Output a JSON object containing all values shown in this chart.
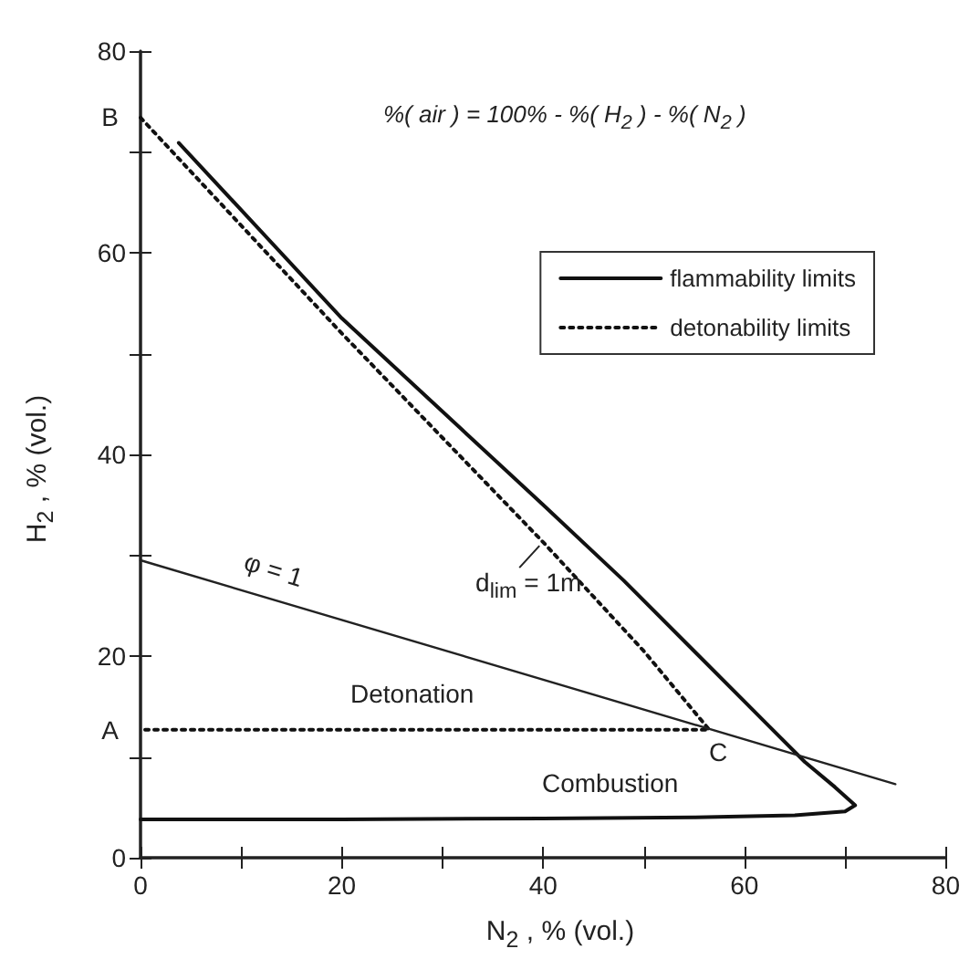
{
  "chart_data": {
    "type": "line",
    "xlabel": "N$_{2}$ , % (vol.)",
    "ylabel": "H$_{2}$ , % (vol.)",
    "xlim": [
      0,
      80
    ],
    "ylim": [
      0,
      80
    ],
    "xticks": [
      0,
      {
        "value": 10,
        "label": null
      },
      20,
      {
        "value": 30,
        "label": null
      },
      40,
      {
        "value": 50,
        "label": null
      },
      60,
      {
        "value": 70,
        "label": null
      },
      80
    ],
    "yticks": [
      0,
      {
        "value": 10,
        "label": null
      },
      20,
      {
        "value": 30,
        "label": null
      },
      40,
      {
        "value": 50,
        "label": null
      },
      60,
      {
        "value": 70,
        "label": null
      },
      80
    ],
    "grid": false,
    "legend": "top right",
    "marker": "none",
    "series": [
      {
        "name": "flammability limits",
        "color": "#111111",
        "line_style": "solid",
        "x": [
          3.8,
          20,
          40,
          48,
          55,
          62,
          66,
          69,
          71,
          70,
          65,
          55,
          40,
          20,
          0
        ],
        "values": [
          70.9,
          53.5,
          35,
          27.5,
          20.5,
          13.5,
          9.5,
          7,
          5.2,
          4.6,
          4.2,
          4,
          3.9,
          3.8,
          3.8
        ]
      },
      {
        "name": "detonability limits",
        "color": "#111111",
        "line_style": "dotted",
        "x": [
          0,
          20,
          40,
          50,
          56.5,
          56.5,
          30,
          0
        ],
        "values": [
          73.4,
          52,
          31.3,
          20.5,
          12.7,
          12.7,
          12.7,
          12.7
        ]
      },
      {
        "color": "#222222",
        "line_style": "solid",
        "x": [
          0,
          75
        ],
        "values": [
          29.5,
          7.3
        ]
      }
    ],
    "annotations": [
      "%( air ) = 100% - %( H$_{2}$ ) - %( N$_{2}$ )",
      {
        "text": "B",
        "x": 0,
        "y": 73.4
      },
      {
        "text": "A",
        "x": 0,
        "y": 12.7
      },
      {
        "text": "C",
        "x": 56.5,
        "y": 12.7
      },
      {
        "text": "φ = 1",
        "x": 10,
        "y": 26.5
      },
      {
        "text": "d$_{lim}$ = 1m",
        "x": 40,
        "y": 31.3
      },
      "Detonation",
      "Combustion"
    ]
  }
}
